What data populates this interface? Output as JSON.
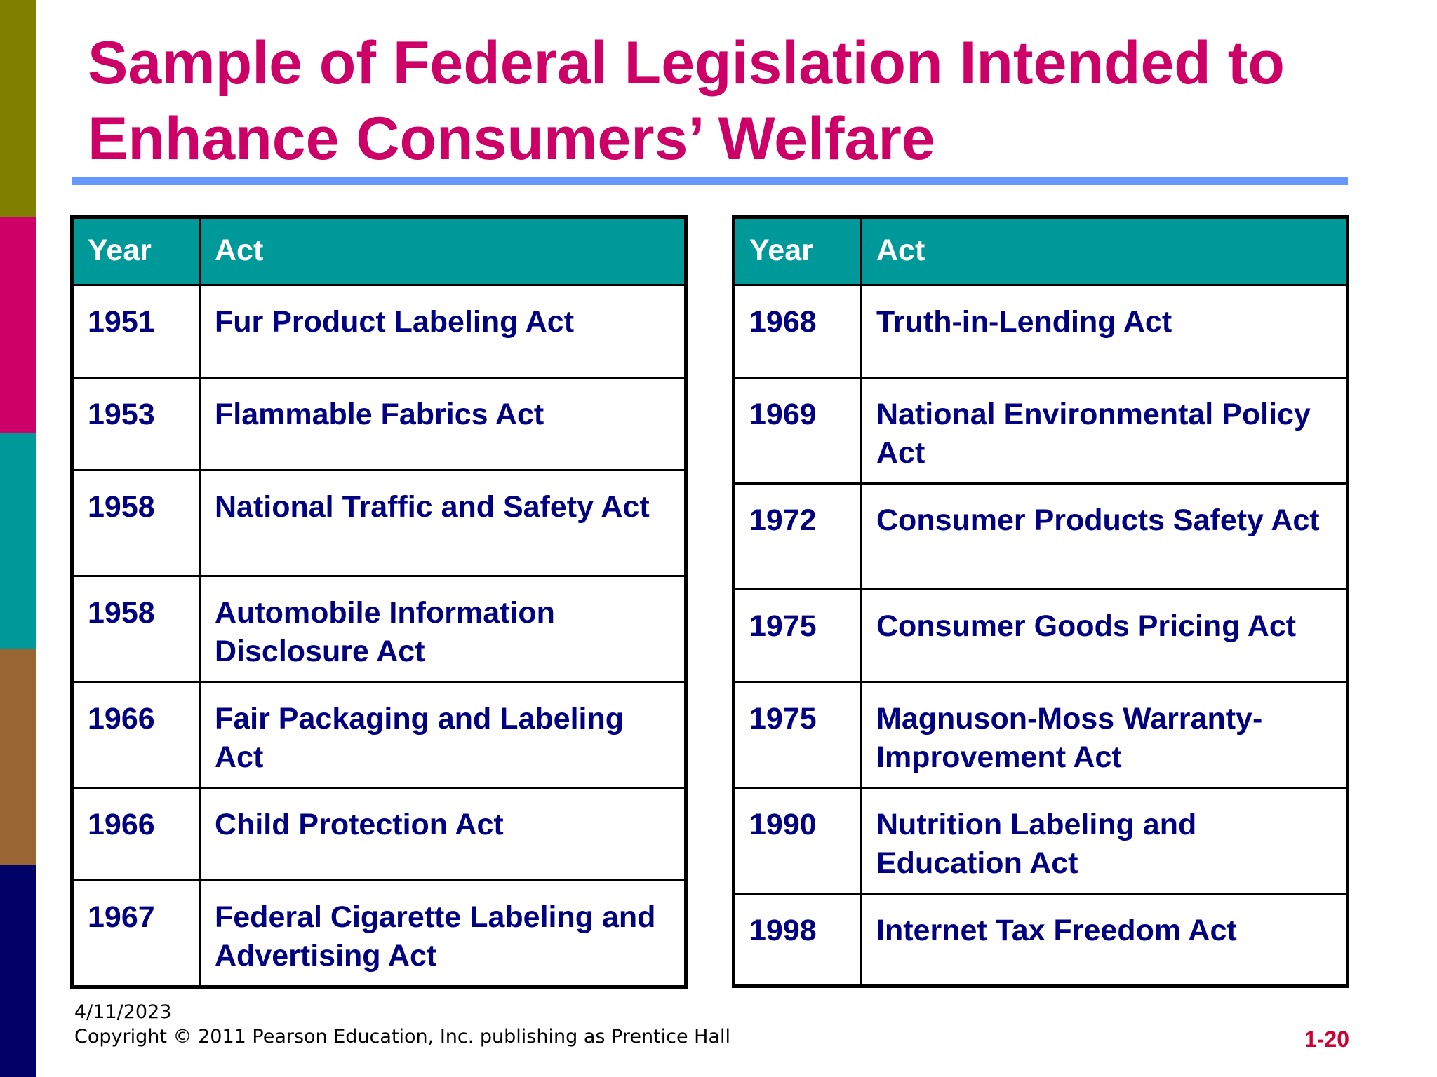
{
  "slide": {
    "title": "Sample of Federal Legislation Intended to Enhance Consumers’ Welfare",
    "accent_color": "#cc0066",
    "table_header_color": "#009999",
    "rule_color": "#6699ff",
    "text_color": "#000080",
    "side_stripe_colors": [
      "#808000",
      "#cc0066",
      "#009999",
      "#996633",
      "#000066"
    ]
  },
  "tables": {
    "left": {
      "headers": {
        "year": "Year",
        "act": "Act"
      },
      "rows": [
        {
          "year": "1951",
          "act": "Fur Product Labeling Act"
        },
        {
          "year": "1953",
          "act": "Flammable Fabrics Act"
        },
        {
          "year": "1958",
          "act": "National Traffic and Safety Act"
        },
        {
          "year": "1958",
          "act": "Automobile Information Disclosure Act"
        },
        {
          "year": "1966",
          "act": "Fair Packaging and Labeling Act"
        },
        {
          "year": "1966",
          "act": "Child Protection Act"
        },
        {
          "year": "1967",
          "act": "Federal Cigarette Labeling and Advertising Act"
        }
      ]
    },
    "right": {
      "headers": {
        "year": "Year",
        "act": "Act"
      },
      "rows": [
        {
          "year": "1968",
          "act": "Truth-in-Lending Act"
        },
        {
          "year": "1969",
          "act": "National Environmental Policy Act"
        },
        {
          "year": "1972",
          "act": "Consumer Products Safety Act"
        },
        {
          "year": "1975",
          "act": "Consumer Goods Pricing Act"
        },
        {
          "year": "1975",
          "act": "Magnuson-Moss Warranty-Improvement Act"
        },
        {
          "year": "1990",
          "act": "Nutrition Labeling and Education Act"
        },
        {
          "year": "1998",
          "act": "Internet Tax Freedom Act"
        }
      ]
    }
  },
  "footer": {
    "date": "4/11/2023",
    "copyright": "Copyright © 2011 Pearson Education, Inc. publishing as Prentice Hall",
    "page_number": "1-20"
  }
}
